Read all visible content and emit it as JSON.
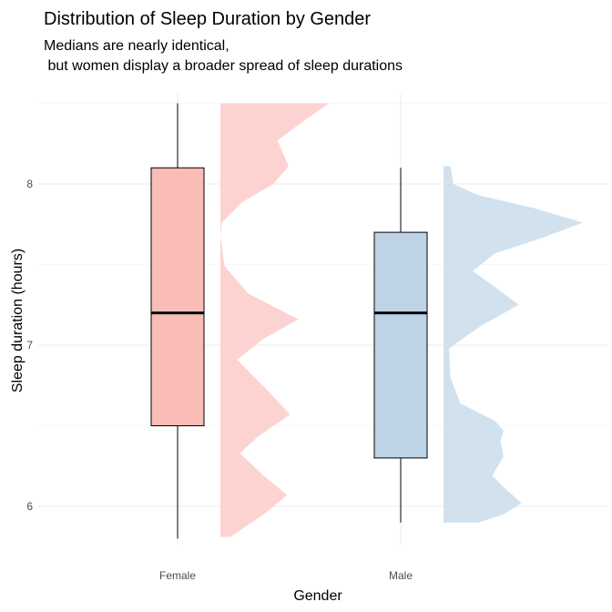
{
  "chart_data": {
    "type": "boxplot+half-violin",
    "title": "Distribution of Sleep Duration by Gender",
    "subtitle_lines": [
      "Medians are nearly identical,",
      " but women display a broader spread of sleep durations"
    ],
    "xlabel": "Gender",
    "ylabel": "Sleep duration (hours)",
    "ylim": [
      5.76,
      8.56
    ],
    "yticks": [
      6,
      7,
      8
    ],
    "ytick_labels": [
      "6",
      "7",
      "8"
    ],
    "grid": true,
    "legend": "none",
    "groups": [
      {
        "name": "Female",
        "box_color": "#f9bcb7",
        "density_color": "#fdd3d1",
        "whisker_low": 5.8,
        "q1": 6.5,
        "median": 7.2,
        "q3": 8.1,
        "whisker_high": 8.5,
        "density": {
          "y": [
            8.5,
            8.38,
            8.27,
            8.11,
            8.0,
            7.89,
            7.76,
            7.68,
            7.49,
            7.32,
            7.16,
            7.04,
            6.91,
            6.7,
            6.57,
            6.44,
            6.33,
            6.19,
            6.07,
            5.95,
            5.81
          ],
          "d": [
            0.78,
            0.58,
            0.41,
            0.49,
            0.38,
            0.16,
            0.01,
            0.0,
            0.03,
            0.2,
            0.56,
            0.31,
            0.12,
            0.36,
            0.5,
            0.28,
            0.14,
            0.31,
            0.48,
            0.31,
            0.07
          ]
        }
      },
      {
        "name": "Male",
        "box_color": "#bed3e6",
        "density_color": "#d2e1ee",
        "whisker_low": 5.9,
        "q1": 6.3,
        "median": 7.2,
        "q3": 7.7,
        "whisker_high": 8.1,
        "density": {
          "y": [
            8.11,
            8.0,
            7.93,
            7.85,
            7.76,
            7.66,
            7.57,
            7.46,
            7.36,
            7.25,
            7.12,
            6.98,
            6.8,
            6.64,
            6.53,
            6.47,
            6.4,
            6.31,
            6.19,
            6.12,
            6.02,
            5.95,
            5.9
          ],
          "d": [
            0.05,
            0.07,
            0.25,
            0.65,
            1.0,
            0.69,
            0.37,
            0.21,
            0.37,
            0.54,
            0.27,
            0.04,
            0.05,
            0.12,
            0.37,
            0.43,
            0.41,
            0.43,
            0.35,
            0.43,
            0.56,
            0.43,
            0.25
          ]
        }
      }
    ]
  }
}
